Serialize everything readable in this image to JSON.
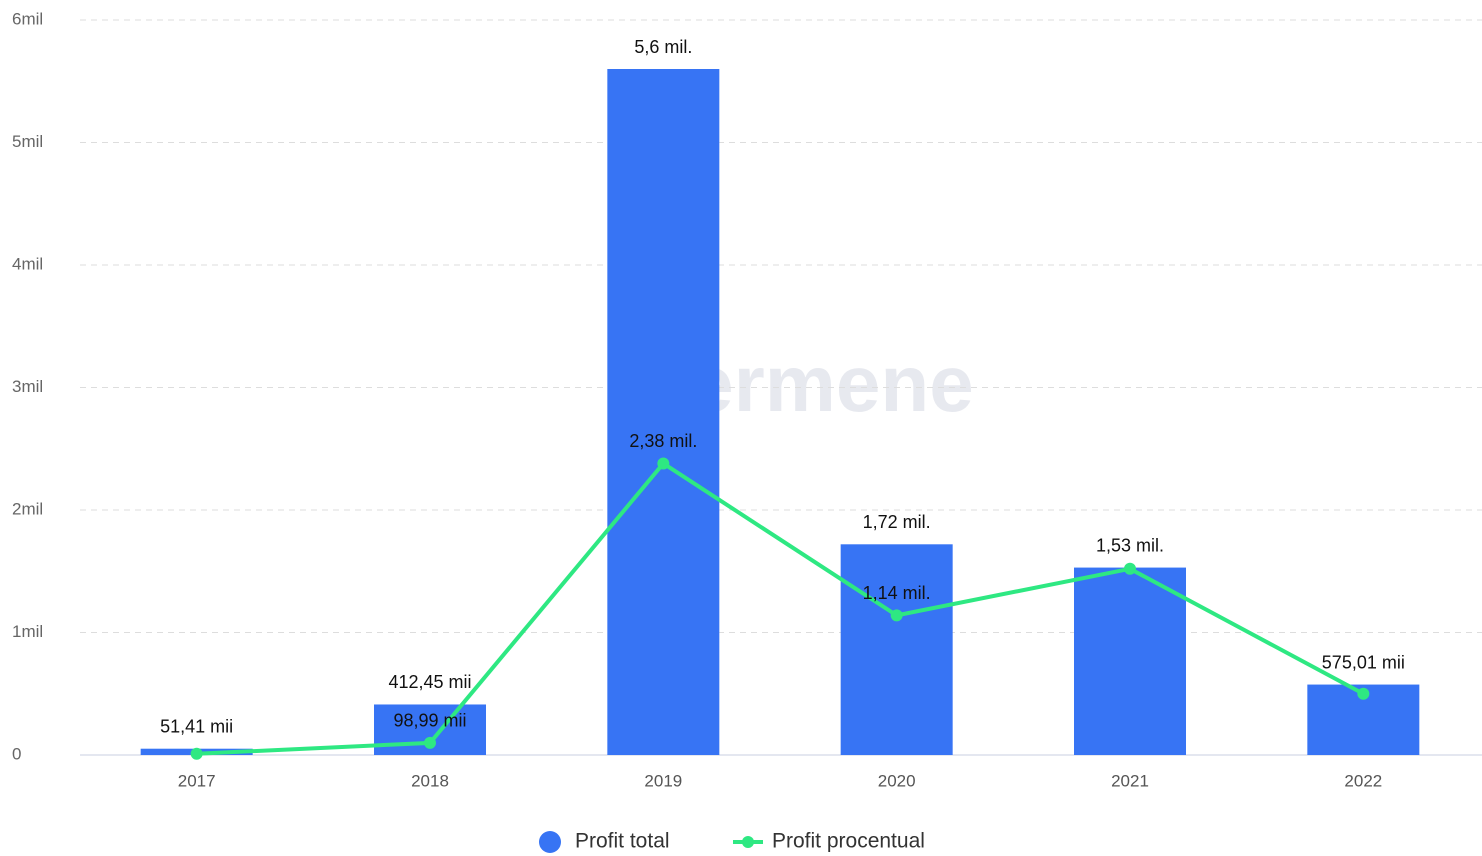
{
  "chart_data": {
    "type": "bar",
    "watermark": "Termene",
    "categories": [
      "2017",
      "2018",
      "2019",
      "2020",
      "2021",
      "2022"
    ],
    "series": [
      {
        "name": "Profit total",
        "type": "bar",
        "color": "#3774f4",
        "values": [
          51410,
          412450,
          5600000,
          1720000,
          1530000,
          575010
        ],
        "value_labels": [
          "51,41 mii",
          "412,45 mii",
          "5,6 mil.",
          "1,72 mil.",
          "1,53 mil.",
          "575,01 mii"
        ]
      },
      {
        "name": "Profit procentual",
        "type": "line",
        "color": "#2ee882",
        "values": [
          10000,
          98990,
          2380000,
          1140000,
          1520000,
          500000
        ],
        "value_labels": [
          null,
          "98,99 mii",
          "2,38 mil.",
          "1,14 mil.",
          null,
          null
        ]
      }
    ],
    "ylim": [
      0,
      6000000
    ],
    "yticks": [
      {
        "value": 0,
        "label": "0"
      },
      {
        "value": 1000000,
        "label": "1mil"
      },
      {
        "value": 2000000,
        "label": "2mil"
      },
      {
        "value": 3000000,
        "label": "3mil"
      },
      {
        "value": 4000000,
        "label": "4mil"
      },
      {
        "value": 5000000,
        "label": "5mil"
      },
      {
        "value": 6000000,
        "label": "6mil"
      }
    ],
    "grid": true,
    "legend": "bottom"
  }
}
